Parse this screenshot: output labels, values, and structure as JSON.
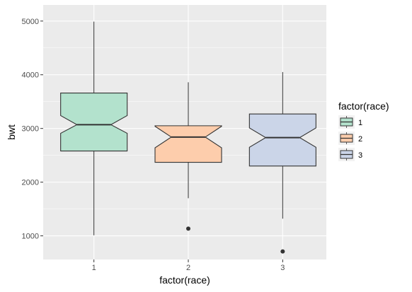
{
  "chart_data": {
    "type": "boxplot",
    "notched": true,
    "xlabel": "factor(race)",
    "ylabel": "bwt",
    "ylim": [
      560,
      5300
    ],
    "y_ticks": [
      1000,
      2000,
      3000,
      4000,
      5000
    ],
    "grid": true,
    "legend": {
      "title": "factor(race)",
      "position": "right",
      "items": [
        "1",
        "2",
        "3"
      ]
    },
    "categories": [
      "1",
      "2",
      "3"
    ],
    "boxes": [
      {
        "category": "1",
        "whisker_low": 1010,
        "q1": 2580,
        "median": 3070,
        "q3": 3660,
        "whisker_high": 4990,
        "notch_low": 2910,
        "notch_high": 3240,
        "outliers": [],
        "color": "#b3e2cd"
      },
      {
        "category": "2",
        "whisker_low": 1700,
        "q1": 2370,
        "median": 2840,
        "q3": 3050,
        "whisker_high": 3860,
        "notch_low": 2640,
        "notch_high": 3040,
        "outliers": [
          1135
        ],
        "color": "#fdcdac"
      },
      {
        "category": "3",
        "whisker_low": 1320,
        "q1": 2300,
        "median": 2830,
        "q3": 3270,
        "whisker_high": 4050,
        "notch_low": 2650,
        "notch_high": 3010,
        "outliers": [
          710
        ],
        "color": "#cbd5e8"
      }
    ],
    "colors": {
      "panel_background": "#ebebeb",
      "grid": "#ffffff",
      "box_stroke": "#333333",
      "outlier": "#333333"
    }
  }
}
